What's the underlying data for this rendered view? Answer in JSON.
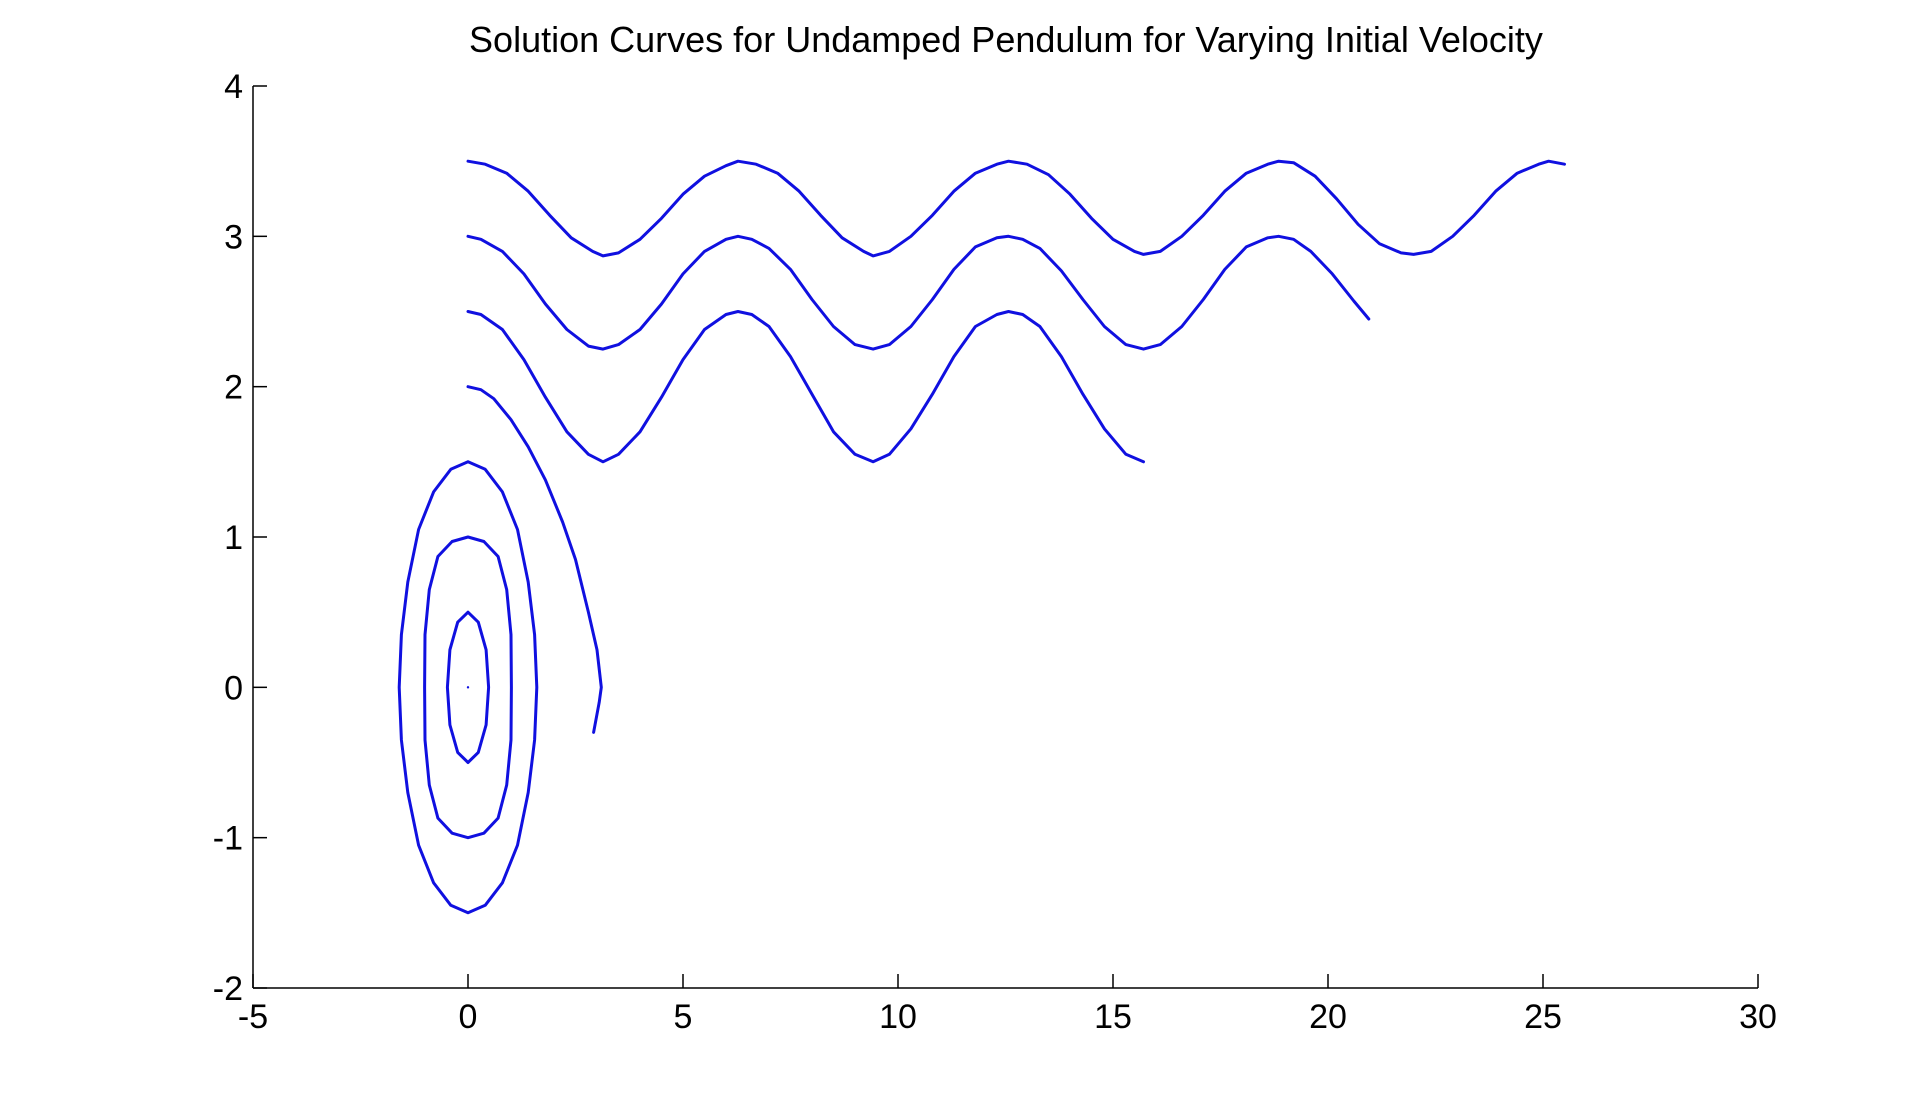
{
  "chart_data": {
    "type": "line",
    "title": "Solution Curves for Undamped Pendulum for Varying Initial Velocity",
    "xlabel": "",
    "ylabel": "",
    "xlim": [
      -5,
      30
    ],
    "ylim": [
      -2,
      4
    ],
    "x_ticks": [
      -5,
      0,
      5,
      10,
      15,
      20,
      25,
      30
    ],
    "y_ticks": [
      -2,
      -1,
      0,
      1,
      2,
      3,
      4
    ],
    "x_tick_labels": [
      "-5",
      "0",
      "5",
      "10",
      "15",
      "20",
      "25",
      "30"
    ],
    "y_tick_labels": [
      "-2",
      "-1",
      "0",
      "1",
      "2",
      "3",
      "4"
    ],
    "grid": false,
    "box": false,
    "line_color": "#1010e0",
    "series": [
      {
        "initial_velocity": 0,
        "points": [
          [
            0,
            0
          ]
        ]
      },
      {
        "initial_velocity": 0.5,
        "points": [
          [
            0,
            0.5
          ],
          [
            0.24,
            0.433
          ],
          [
            0.42,
            0.25
          ],
          [
            0.48,
            0
          ],
          [
            0.42,
            -0.25
          ],
          [
            0.24,
            -0.433
          ],
          [
            0,
            -0.5
          ],
          [
            -0.24,
            -0.433
          ],
          [
            -0.42,
            -0.25
          ],
          [
            -0.48,
            0
          ],
          [
            -0.42,
            0.25
          ],
          [
            -0.24,
            0.433
          ],
          [
            0,
            0.5
          ]
        ]
      },
      {
        "initial_velocity": 1.0,
        "points": [
          [
            0,
            1.0
          ],
          [
            0.37,
            0.97
          ],
          [
            0.7,
            0.87
          ],
          [
            0.9,
            0.65
          ],
          [
            1.0,
            0.35
          ],
          [
            1.01,
            0
          ],
          [
            1.0,
            -0.35
          ],
          [
            0.9,
            -0.65
          ],
          [
            0.7,
            -0.87
          ],
          [
            0.37,
            -0.97
          ],
          [
            0,
            -1.0
          ],
          [
            -0.37,
            -0.97
          ],
          [
            -0.7,
            -0.87
          ],
          [
            -0.9,
            -0.65
          ],
          [
            -1.0,
            -0.35
          ],
          [
            -1.01,
            0
          ],
          [
            -1.0,
            0.35
          ],
          [
            -0.9,
            0.65
          ],
          [
            -0.7,
            0.87
          ],
          [
            -0.37,
            0.97
          ],
          [
            0,
            1.0
          ]
        ]
      },
      {
        "initial_velocity": 1.5,
        "points": [
          [
            0,
            1.5
          ],
          [
            0.4,
            1.45
          ],
          [
            0.8,
            1.3
          ],
          [
            1.15,
            1.05
          ],
          [
            1.4,
            0.7
          ],
          [
            1.55,
            0.35
          ],
          [
            1.6,
            0
          ],
          [
            1.55,
            -0.35
          ],
          [
            1.4,
            -0.7
          ],
          [
            1.15,
            -1.05
          ],
          [
            0.8,
            -1.3
          ],
          [
            0.4,
            -1.45
          ],
          [
            0,
            -1.5
          ],
          [
            -0.4,
            -1.45
          ],
          [
            -0.8,
            -1.3
          ],
          [
            -1.15,
            -1.05
          ],
          [
            -1.4,
            -0.7
          ],
          [
            -1.55,
            -0.35
          ],
          [
            -1.6,
            0
          ],
          [
            -1.55,
            0.35
          ],
          [
            -1.4,
            0.7
          ],
          [
            -1.15,
            1.05
          ],
          [
            -0.8,
            1.3
          ],
          [
            -0.4,
            1.45
          ],
          [
            0,
            1.5
          ]
        ]
      },
      {
        "initial_velocity": 2.0,
        "points": [
          [
            0,
            2.0
          ],
          [
            0.3,
            1.98
          ],
          [
            0.6,
            1.92
          ],
          [
            1.0,
            1.78
          ],
          [
            1.4,
            1.6
          ],
          [
            1.8,
            1.38
          ],
          [
            2.2,
            1.1
          ],
          [
            2.5,
            0.85
          ],
          [
            2.8,
            0.5
          ],
          [
            3.0,
            0.25
          ],
          [
            3.1,
            0
          ],
          [
            3.05,
            -0.1
          ],
          [
            2.92,
            -0.3
          ]
        ]
      },
      {
        "initial_velocity": 2.5,
        "points": [
          [
            0,
            2.5
          ],
          [
            0.3,
            2.48
          ],
          [
            0.8,
            2.38
          ],
          [
            1.3,
            2.18
          ],
          [
            1.8,
            1.93
          ],
          [
            2.3,
            1.7
          ],
          [
            2.8,
            1.55
          ],
          [
            3.14,
            1.5
          ],
          [
            3.5,
            1.55
          ],
          [
            4.0,
            1.7
          ],
          [
            4.5,
            1.93
          ],
          [
            5.0,
            2.18
          ],
          [
            5.5,
            2.38
          ],
          [
            6.0,
            2.48
          ],
          [
            6.28,
            2.5
          ],
          [
            6.6,
            2.48
          ],
          [
            7.0,
            2.4
          ],
          [
            7.5,
            2.2
          ],
          [
            8.0,
            1.95
          ],
          [
            8.5,
            1.7
          ],
          [
            9.0,
            1.55
          ],
          [
            9.42,
            1.5
          ],
          [
            9.8,
            1.55
          ],
          [
            10.3,
            1.72
          ],
          [
            10.8,
            1.95
          ],
          [
            11.3,
            2.2
          ],
          [
            11.8,
            2.4
          ],
          [
            12.3,
            2.48
          ],
          [
            12.57,
            2.5
          ],
          [
            12.9,
            2.48
          ],
          [
            13.3,
            2.4
          ],
          [
            13.8,
            2.2
          ],
          [
            14.3,
            1.95
          ],
          [
            14.8,
            1.72
          ],
          [
            15.3,
            1.55
          ],
          [
            15.71,
            1.5
          ]
        ]
      },
      {
        "initial_velocity": 3.0,
        "points": [
          [
            0,
            3.0
          ],
          [
            0.3,
            2.98
          ],
          [
            0.8,
            2.9
          ],
          [
            1.3,
            2.75
          ],
          [
            1.8,
            2.55
          ],
          [
            2.3,
            2.38
          ],
          [
            2.8,
            2.27
          ],
          [
            3.14,
            2.25
          ],
          [
            3.5,
            2.28
          ],
          [
            4.0,
            2.38
          ],
          [
            4.5,
            2.55
          ],
          [
            5.0,
            2.75
          ],
          [
            5.5,
            2.9
          ],
          [
            6.0,
            2.98
          ],
          [
            6.28,
            3.0
          ],
          [
            6.6,
            2.98
          ],
          [
            7.0,
            2.92
          ],
          [
            7.5,
            2.78
          ],
          [
            8.0,
            2.58
          ],
          [
            8.5,
            2.4
          ],
          [
            9.0,
            2.28
          ],
          [
            9.42,
            2.25
          ],
          [
            9.8,
            2.28
          ],
          [
            10.3,
            2.4
          ],
          [
            10.8,
            2.58
          ],
          [
            11.3,
            2.78
          ],
          [
            11.8,
            2.93
          ],
          [
            12.3,
            2.99
          ],
          [
            12.57,
            3.0
          ],
          [
            12.9,
            2.98
          ],
          [
            13.3,
            2.92
          ],
          [
            13.8,
            2.77
          ],
          [
            14.3,
            2.58
          ],
          [
            14.8,
            2.4
          ],
          [
            15.3,
            2.28
          ],
          [
            15.71,
            2.25
          ],
          [
            16.1,
            2.28
          ],
          [
            16.6,
            2.4
          ],
          [
            17.1,
            2.58
          ],
          [
            17.6,
            2.78
          ],
          [
            18.1,
            2.93
          ],
          [
            18.6,
            2.99
          ],
          [
            18.85,
            3.0
          ],
          [
            19.2,
            2.98
          ],
          [
            19.6,
            2.9
          ],
          [
            20.1,
            2.75
          ],
          [
            20.6,
            2.57
          ],
          [
            20.95,
            2.45
          ]
        ]
      },
      {
        "initial_velocity": 3.5,
        "points": [
          [
            0,
            3.5
          ],
          [
            0.4,
            3.48
          ],
          [
            0.9,
            3.42
          ],
          [
            1.4,
            3.3
          ],
          [
            1.9,
            3.14
          ],
          [
            2.4,
            2.99
          ],
          [
            2.9,
            2.9
          ],
          [
            3.14,
            2.87
          ],
          [
            3.5,
            2.89
          ],
          [
            4.0,
            2.98
          ],
          [
            4.5,
            3.12
          ],
          [
            5.0,
            3.28
          ],
          [
            5.5,
            3.4
          ],
          [
            6.0,
            3.47
          ],
          [
            6.28,
            3.5
          ],
          [
            6.7,
            3.48
          ],
          [
            7.2,
            3.42
          ],
          [
            7.7,
            3.3
          ],
          [
            8.2,
            3.14
          ],
          [
            8.7,
            2.99
          ],
          [
            9.2,
            2.9
          ],
          [
            9.42,
            2.87
          ],
          [
            9.8,
            2.9
          ],
          [
            10.3,
            3.0
          ],
          [
            10.8,
            3.14
          ],
          [
            11.3,
            3.3
          ],
          [
            11.8,
            3.42
          ],
          [
            12.3,
            3.48
          ],
          [
            12.57,
            3.5
          ],
          [
            13.0,
            3.48
          ],
          [
            13.5,
            3.41
          ],
          [
            14.0,
            3.28
          ],
          [
            14.5,
            3.12
          ],
          [
            15.0,
            2.98
          ],
          [
            15.5,
            2.9
          ],
          [
            15.71,
            2.88
          ],
          [
            16.1,
            2.9
          ],
          [
            16.6,
            3.0
          ],
          [
            17.1,
            3.14
          ],
          [
            17.6,
            3.3
          ],
          [
            18.1,
            3.42
          ],
          [
            18.6,
            3.48
          ],
          [
            18.85,
            3.5
          ],
          [
            19.2,
            3.49
          ],
          [
            19.7,
            3.4
          ],
          [
            20.2,
            3.25
          ],
          [
            20.7,
            3.08
          ],
          [
            21.2,
            2.95
          ],
          [
            21.7,
            2.89
          ],
          [
            21.99,
            2.88
          ],
          [
            22.4,
            2.9
          ],
          [
            22.9,
            3.0
          ],
          [
            23.4,
            3.14
          ],
          [
            23.9,
            3.3
          ],
          [
            24.4,
            3.42
          ],
          [
            24.9,
            3.48
          ],
          [
            25.13,
            3.5
          ],
          [
            25.5,
            3.48
          ]
        ]
      }
    ]
  }
}
